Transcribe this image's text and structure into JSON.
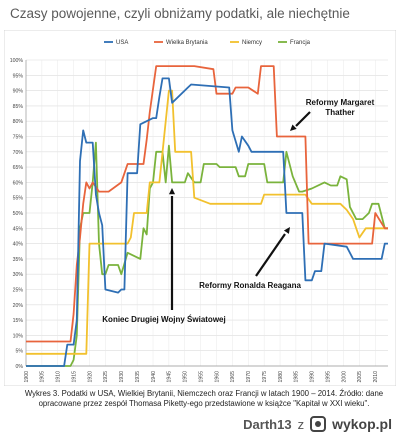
{
  "header": {
    "title": "Czasy powojenne, czyli obniżamy podatki, ale niechętnie"
  },
  "chart_data": {
    "type": "line",
    "title": "",
    "xlabel": "",
    "ylabel": "",
    "xlim": [
      1900,
      2014
    ],
    "ylim": [
      0,
      100
    ],
    "grid": true,
    "legend_position": "top",
    "x_ticks": [
      1900,
      1905,
      1910,
      1915,
      1920,
      1925,
      1930,
      1935,
      1940,
      1945,
      1950,
      1955,
      1960,
      1965,
      1970,
      1975,
      1980,
      1985,
      1990,
      1995,
      2000,
      2005,
      2010
    ],
    "y_ticks": [
      0,
      5,
      10,
      15,
      20,
      25,
      30,
      35,
      40,
      45,
      50,
      55,
      60,
      65,
      70,
      75,
      80,
      85,
      90,
      95,
      100
    ],
    "series": [
      {
        "name": "USA",
        "color": "#2e6fb5",
        "points": [
          [
            1900,
            0
          ],
          [
            1912,
            0
          ],
          [
            1913,
            7
          ],
          [
            1915,
            7
          ],
          [
            1916,
            15
          ],
          [
            1917,
            67
          ],
          [
            1918,
            77
          ],
          [
            1919,
            73
          ],
          [
            1921,
            73
          ],
          [
            1922,
            56
          ],
          [
            1923,
            50
          ],
          [
            1924,
            46
          ],
          [
            1925,
            25
          ],
          [
            1929,
            24
          ],
          [
            1930,
            25
          ],
          [
            1931,
            25
          ],
          [
            1932,
            63
          ],
          [
            1935,
            63
          ],
          [
            1936,
            79
          ],
          [
            1940,
            81
          ],
          [
            1941,
            81
          ],
          [
            1942,
            88
          ],
          [
            1943,
            94
          ],
          [
            1945,
            94
          ],
          [
            1946,
            86
          ],
          [
            1951,
            91
          ],
          [
            1952,
            92
          ],
          [
            1964,
            91
          ],
          [
            1965,
            77
          ],
          [
            1967,
            70
          ],
          [
            1968,
            75
          ],
          [
            1970,
            72
          ],
          [
            1971,
            70
          ],
          [
            1981,
            70
          ],
          [
            1982,
            50
          ],
          [
            1987,
            50
          ],
          [
            1988,
            28
          ],
          [
            1990,
            28
          ],
          [
            1991,
            31
          ],
          [
            1993,
            31
          ],
          [
            1994,
            40
          ],
          [
            2001,
            39
          ],
          [
            2003,
            35
          ],
          [
            2012,
            35
          ],
          [
            2013,
            40
          ],
          [
            2014,
            40
          ]
        ]
      },
      {
        "name": "Wielka Brytania",
        "color": "#e8643c",
        "points": [
          [
            1900,
            8
          ],
          [
            1909,
            8
          ],
          [
            1910,
            8
          ],
          [
            1914,
            8
          ],
          [
            1915,
            17
          ],
          [
            1916,
            33
          ],
          [
            1917,
            42
          ],
          [
            1918,
            53
          ],
          [
            1919,
            60
          ],
          [
            1920,
            58
          ],
          [
            1921,
            60
          ],
          [
            1923,
            57
          ],
          [
            1926,
            57
          ],
          [
            1930,
            60
          ],
          [
            1932,
            66
          ],
          [
            1937,
            66
          ],
          [
            1938,
            74
          ],
          [
            1939,
            83
          ],
          [
            1941,
            98
          ],
          [
            1952,
            98
          ],
          [
            1953,
            98
          ],
          [
            1959,
            97
          ],
          [
            1960,
            89
          ],
          [
            1965,
            89
          ],
          [
            1966,
            91
          ],
          [
            1970,
            91
          ],
          [
            1973,
            89
          ],
          [
            1974,
            98
          ],
          [
            1978,
            98
          ],
          [
            1979,
            75
          ],
          [
            1988,
            75
          ],
          [
            1989,
            40
          ],
          [
            2009,
            40
          ],
          [
            2010,
            50
          ],
          [
            2013,
            45
          ],
          [
            2014,
            45
          ]
        ]
      },
      {
        "name": "Niemcy",
        "color": "#f2c12e",
        "points": [
          [
            1900,
            4
          ],
          [
            1910,
            4
          ],
          [
            1911,
            4
          ],
          [
            1919,
            4
          ],
          [
            1920,
            40
          ],
          [
            1926,
            40
          ],
          [
            1932,
            40
          ],
          [
            1933,
            42
          ],
          [
            1934,
            50
          ],
          [
            1938,
            50
          ],
          [
            1939,
            60
          ],
          [
            1941,
            60
          ],
          [
            1942,
            60
          ],
          [
            1945,
            90
          ],
          [
            1946,
            90
          ],
          [
            1947,
            70
          ],
          [
            1952,
            70
          ],
          [
            1953,
            55
          ],
          [
            1958,
            53
          ],
          [
            1974,
            53
          ],
          [
            1975,
            56
          ],
          [
            1988,
            56
          ],
          [
            1990,
            53
          ],
          [
            1999,
            53
          ],
          [
            2001,
            51
          ],
          [
            2003,
            48
          ],
          [
            2004,
            45
          ],
          [
            2005,
            42
          ],
          [
            2007,
            45
          ],
          [
            2014,
            45
          ]
        ]
      },
      {
        "name": "Francja",
        "color": "#7ab33c",
        "points": [
          [
            1900,
            0
          ],
          [
            1914,
            0
          ],
          [
            1915,
            2
          ],
          [
            1916,
            10
          ],
          [
            1917,
            45
          ],
          [
            1918,
            50
          ],
          [
            1920,
            50
          ],
          [
            1921,
            60
          ],
          [
            1922,
            73
          ],
          [
            1923,
            40
          ],
          [
            1924,
            30
          ],
          [
            1925,
            30
          ],
          [
            1926,
            33
          ],
          [
            1929,
            33
          ],
          [
            1930,
            30
          ],
          [
            1932,
            37
          ],
          [
            1936,
            35
          ],
          [
            1937,
            45
          ],
          [
            1938,
            43
          ],
          [
            1939,
            58
          ],
          [
            1940,
            60
          ],
          [
            1941,
            70
          ],
          [
            1943,
            70
          ],
          [
            1944,
            60
          ],
          [
            1945,
            72
          ],
          [
            1946,
            60
          ],
          [
            1950,
            60
          ],
          [
            1951,
            63
          ],
          [
            1953,
            60
          ],
          [
            1955,
            60
          ],
          [
            1956,
            66
          ],
          [
            1960,
            66
          ],
          [
            1961,
            65
          ],
          [
            1966,
            65
          ],
          [
            1967,
            62
          ],
          [
            1969,
            62
          ],
          [
            1970,
            66
          ],
          [
            1975,
            66
          ],
          [
            1976,
            60
          ],
          [
            1981,
            60
          ],
          [
            1982,
            70
          ],
          [
            1984,
            62
          ],
          [
            1986,
            57
          ],
          [
            1987,
            57
          ],
          [
            1990,
            58
          ],
          [
            1994,
            60
          ],
          [
            1996,
            59
          ],
          [
            1998,
            59
          ],
          [
            1999,
            62
          ],
          [
            2001,
            61
          ],
          [
            2002,
            52
          ],
          [
            2004,
            48
          ],
          [
            2006,
            48
          ],
          [
            2008,
            50
          ],
          [
            2009,
            53
          ],
          [
            2011,
            53
          ],
          [
            2013,
            45
          ],
          [
            2014,
            45
          ]
        ]
      }
    ],
    "annotations": [
      {
        "text": "Reformy Margaret Thather"
      },
      {
        "text": "Reformy Ronalda Reagana"
      },
      {
        "text": "Koniec Drugiej Wojny Światowej"
      }
    ]
  },
  "caption": "Wykres 3. Podatki w USA, Wielkiej Brytanii, Niemczech oraz Francji w latach 1900 – 2014. Źródło: dane opracowane przez zespół Thomasa Piketty-ego przedstawione w książce \"Kapitał w XXI wieku\".",
  "footer": {
    "user": "Darth13",
    "connector": "z",
    "site": "wykop.pl"
  }
}
